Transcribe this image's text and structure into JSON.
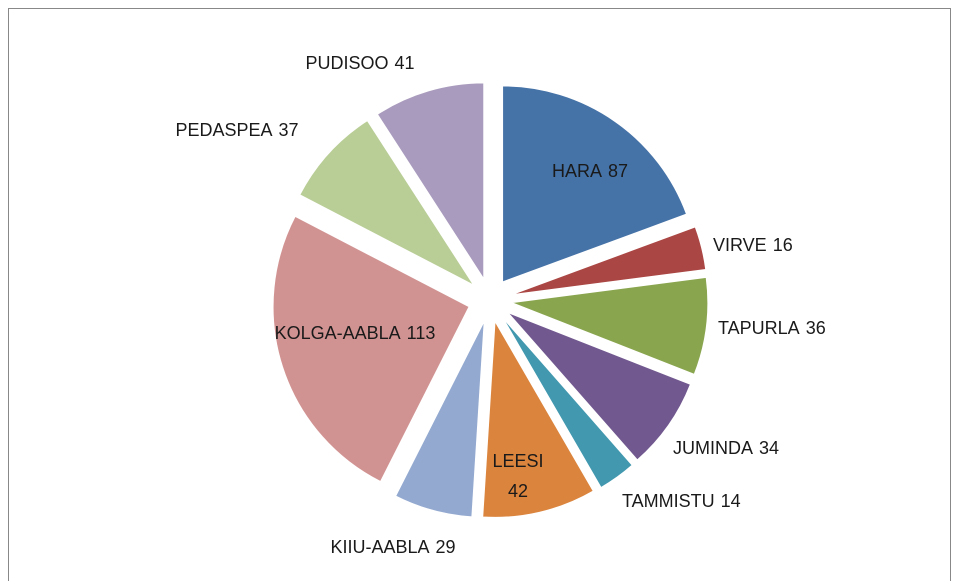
{
  "chart_data": {
    "type": "pie",
    "categories": [
      "HARA",
      "VIRVE",
      "TAPURLA",
      "JUMINDA",
      "TAMMISTU",
      "LEESI",
      "KIIU-AABLA",
      "KOLGA-AABLA",
      "PEDASPEA",
      "PUDISOO"
    ],
    "values": [
      87,
      16,
      36,
      34,
      14,
      42,
      29,
      113,
      37,
      41
    ],
    "colors": [
      "#4572a7",
      "#aa4643",
      "#89a54e",
      "#71588f",
      "#4198af",
      "#db843d",
      "#93a9cf",
      "#d19392",
      "#b9cd96",
      "#a99bbd"
    ],
    "exploded": true
  }
}
